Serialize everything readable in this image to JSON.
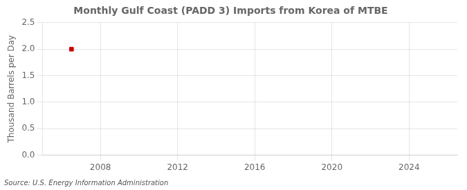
{
  "chart_data": {
    "type": "scatter",
    "title": "Monthly Gulf Coast (PADD 3) Imports from Korea of MTBE",
    "ylabel": "Thousand Barrels per Day",
    "annotation": "Source: U.S. Energy Information Administration",
    "x": [
      2006.5
    ],
    "values": [
      2.0
    ],
    "color": "#cc0000",
    "marker": "square",
    "xlim": [
      2005.0,
      2026.5
    ],
    "xticks": [
      2008,
      2012,
      2016,
      2020,
      2024
    ],
    "ylim": [
      0.0,
      2.5
    ],
    "yticks": [
      {
        "value": 0.0,
        "label": "0.0"
      },
      0.5,
      {
        "value": 1.0,
        "label": "1.0"
      },
      1.5,
      {
        "value": 2.0,
        "label": "2.0"
      },
      2.5
    ],
    "grid": true
  }
}
